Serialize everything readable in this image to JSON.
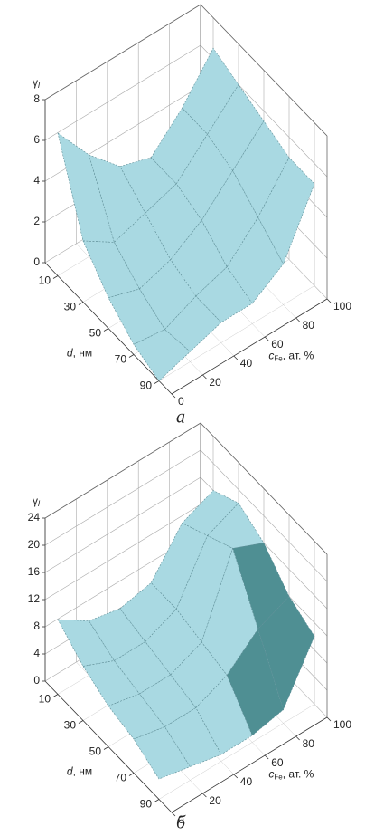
{
  "chart_data": [
    {
      "type": "surface",
      "caption": "а",
      "zlabel": "γ",
      "zlabel_sub": "l",
      "dlabel": "d",
      "dlabel_unit": ", нм",
      "clabel": "c",
      "clabel_sub": "Fe",
      "clabel_unit": ", ат. %",
      "d": [
        10,
        30,
        50,
        70,
        90
      ],
      "c": [
        0,
        20,
        40,
        60,
        80,
        100
      ],
      "z": [
        [
          7,
          5,
          3.5,
          3,
          4.5,
          6.5
        ],
        [
          3,
          2,
          2.5,
          3,
          4.5,
          6
        ],
        [
          1.5,
          1,
          1.5,
          2.5,
          4,
          5.5
        ],
        [
          0.5,
          0.3,
          1,
          1.5,
          3,
          5
        ],
        [
          0,
          0.5,
          1,
          1,
          2,
          5
        ]
      ],
      "dlim": [
        0,
        100
      ],
      "clim": [
        0,
        100
      ],
      "zlim": [
        0,
        8
      ],
      "dticks": [
        10,
        30,
        50,
        70,
        90
      ],
      "cticks": [
        0,
        20,
        40,
        60,
        80,
        100
      ],
      "zticks": [
        0,
        2,
        4,
        6,
        8
      ],
      "color": "#a9d9e2"
    },
    {
      "type": "surface",
      "caption": "б",
      "zlabel": "γ",
      "zlabel_sub": "l",
      "dlabel": "d",
      "dlabel_unit": ", нм",
      "clabel": "c",
      "clabel_sub": "Fe",
      "clabel_unit": ", ат. %",
      "d": [
        10,
        30,
        50,
        70,
        90
      ],
      "c": [
        0,
        20,
        40,
        60,
        80,
        100
      ],
      "z": [
        [
          11,
          8,
          7,
          8,
          14,
          16
        ],
        [
          8,
          6,
          6,
          8,
          16,
          18
        ],
        [
          6,
          5,
          5,
          7,
          18,
          16
        ],
        [
          5,
          4,
          4,
          6,
          10,
          12
        ],
        [
          3,
          2,
          1,
          1,
          2,
          10
        ]
      ],
      "dlim": [
        0,
        100
      ],
      "clim": [
        0,
        100
      ],
      "zlim": [
        0,
        24
      ],
      "dticks": [
        10,
        30,
        50,
        70,
        90
      ],
      "cticks": [
        0,
        20,
        40,
        60,
        80,
        100
      ],
      "zticks": [
        0,
        4,
        8,
        12,
        16,
        20,
        24
      ],
      "color": "#a9d9e2"
    }
  ]
}
